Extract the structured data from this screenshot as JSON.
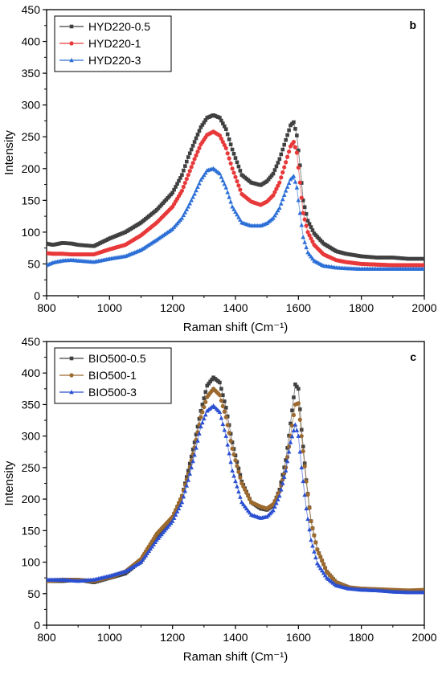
{
  "chart_data": [
    {
      "type": "scatter",
      "panel_label": "b",
      "xlabel": "Raman shift (Cm⁻¹)",
      "ylabel": "Intensity",
      "xlim": [
        800,
        2000
      ],
      "ylim": [
        0,
        450
      ],
      "xticks": [
        800,
        1000,
        1200,
        1400,
        1600,
        1800,
        2000
      ],
      "yticks": [
        0,
        50,
        100,
        150,
        200,
        250,
        300,
        350,
        400,
        450
      ],
      "grid": false,
      "legend": "top-left",
      "series": [
        {
          "name": "HYD220-0.5",
          "color": "#404040",
          "marker": "square",
          "x": [
            800,
            820,
            850,
            880,
            900,
            950,
            1000,
            1050,
            1100,
            1150,
            1200,
            1230,
            1250,
            1270,
            1290,
            1310,
            1330,
            1350,
            1370,
            1390,
            1420,
            1450,
            1480,
            1500,
            1520,
            1540,
            1560,
            1575,
            1585,
            1595,
            1605,
            1615,
            1630,
            1650,
            1680,
            1720,
            1750,
            1800,
            1850,
            1900,
            1950,
            2000
          ],
          "y": [
            82,
            80,
            83,
            82,
            80,
            78,
            90,
            100,
            115,
            135,
            162,
            190,
            218,
            242,
            265,
            280,
            284,
            280,
            262,
            230,
            190,
            178,
            174,
            180,
            192,
            215,
            245,
            268,
            273,
            252,
            205,
            150,
            118,
            98,
            82,
            70,
            66,
            62,
            60,
            60,
            58,
            58
          ]
        },
        {
          "name": "HYD220-1",
          "color": "#e8393a",
          "marker": "circle",
          "x": [
            800,
            820,
            850,
            880,
            900,
            950,
            1000,
            1050,
            1100,
            1150,
            1200,
            1230,
            1250,
            1270,
            1290,
            1310,
            1330,
            1350,
            1370,
            1390,
            1420,
            1450,
            1480,
            1500,
            1520,
            1540,
            1560,
            1575,
            1585,
            1595,
            1605,
            1615,
            1630,
            1650,
            1680,
            1720,
            1750,
            1800,
            1850,
            1900,
            1950,
            2000
          ],
          "y": [
            67,
            66,
            66,
            65,
            65,
            65,
            73,
            80,
            95,
            115,
            140,
            165,
            190,
            215,
            238,
            253,
            258,
            252,
            232,
            200,
            160,
            148,
            143,
            148,
            158,
            178,
            210,
            235,
            242,
            225,
            178,
            130,
            100,
            80,
            65,
            56,
            53,
            50,
            49,
            48,
            48,
            48
          ]
        },
        {
          "name": "HYD220-3",
          "color": "#2c6fd6",
          "marker": "triangle",
          "x": [
            800,
            820,
            850,
            880,
            900,
            950,
            1000,
            1050,
            1100,
            1150,
            1200,
            1230,
            1250,
            1270,
            1290,
            1310,
            1330,
            1350,
            1370,
            1390,
            1420,
            1450,
            1480,
            1500,
            1520,
            1540,
            1560,
            1575,
            1585,
            1595,
            1605,
            1615,
            1630,
            1650,
            1680,
            1720,
            1750,
            1800,
            1850,
            1900,
            1950,
            2000
          ],
          "y": [
            48,
            52,
            55,
            56,
            55,
            53,
            58,
            62,
            72,
            88,
            105,
            122,
            140,
            160,
            182,
            197,
            200,
            192,
            170,
            140,
            115,
            110,
            110,
            114,
            122,
            138,
            165,
            183,
            188,
            170,
            130,
            92,
            68,
            55,
            47,
            44,
            43,
            42,
            42,
            42,
            42,
            42
          ]
        }
      ]
    },
    {
      "type": "scatter",
      "panel_label": "c",
      "xlabel": "Raman shift (Cm⁻¹)",
      "ylabel": "Intensity",
      "xlim": [
        800,
        2000
      ],
      "ylim": [
        0,
        450
      ],
      "xticks": [
        800,
        1000,
        1200,
        1400,
        1600,
        1800,
        2000
      ],
      "yticks": [
        0,
        50,
        100,
        150,
        200,
        250,
        300,
        350,
        400,
        450
      ],
      "grid": false,
      "legend": "top-left",
      "series": [
        {
          "name": "BIO500-0.5",
          "color": "#404040",
          "marker": "square",
          "x": [
            800,
            850,
            900,
            950,
            1000,
            1050,
            1100,
            1150,
            1200,
            1230,
            1250,
            1270,
            1290,
            1310,
            1330,
            1350,
            1370,
            1390,
            1420,
            1450,
            1480,
            1500,
            1520,
            1540,
            1560,
            1575,
            1590,
            1600,
            1610,
            1625,
            1640,
            1660,
            1690,
            1720,
            1760,
            1800,
            1850,
            1900,
            1950,
            2000
          ],
          "y": [
            70,
            70,
            72,
            68,
            75,
            82,
            102,
            140,
            170,
            205,
            245,
            290,
            340,
            380,
            393,
            385,
            345,
            290,
            228,
            195,
            185,
            183,
            190,
            215,
            262,
            320,
            382,
            375,
            310,
            230,
            165,
            120,
            85,
            68,
            60,
            57,
            56,
            55,
            55,
            55
          ]
        },
        {
          "name": "BIO500-1",
          "color": "#9c6a2e",
          "marker": "circle",
          "x": [
            800,
            850,
            900,
            950,
            1000,
            1050,
            1100,
            1150,
            1200,
            1230,
            1250,
            1270,
            1290,
            1310,
            1330,
            1350,
            1370,
            1390,
            1420,
            1450,
            1480,
            1500,
            1520,
            1540,
            1560,
            1575,
            1590,
            1600,
            1610,
            1625,
            1640,
            1660,
            1690,
            1720,
            1760,
            1800,
            1850,
            1900,
            1950,
            2000
          ],
          "y": [
            70,
            72,
            72,
            70,
            76,
            85,
            105,
            145,
            172,
            205,
            240,
            282,
            330,
            362,
            375,
            365,
            330,
            280,
            225,
            195,
            188,
            185,
            192,
            212,
            250,
            300,
            350,
            352,
            300,
            228,
            165,
            120,
            85,
            68,
            60,
            58,
            57,
            56,
            55,
            56
          ]
        },
        {
          "name": "BIO500-3",
          "color": "#2a4fd1",
          "marker": "triangle",
          "x": [
            800,
            850,
            900,
            950,
            1000,
            1050,
            1100,
            1150,
            1200,
            1230,
            1250,
            1270,
            1290,
            1310,
            1330,
            1350,
            1370,
            1390,
            1420,
            1450,
            1480,
            1500,
            1520,
            1540,
            1560,
            1575,
            1590,
            1600,
            1610,
            1625,
            1640,
            1660,
            1690,
            1720,
            1760,
            1800,
            1850,
            1900,
            1950,
            2000
          ],
          "y": [
            72,
            72,
            70,
            72,
            78,
            85,
            100,
            135,
            165,
            195,
            230,
            270,
            315,
            340,
            348,
            338,
            300,
            245,
            195,
            175,
            170,
            172,
            182,
            205,
            245,
            290,
            318,
            300,
            250,
            185,
            135,
            98,
            75,
            63,
            58,
            56,
            55,
            53,
            52,
            52
          ]
        }
      ]
    }
  ]
}
